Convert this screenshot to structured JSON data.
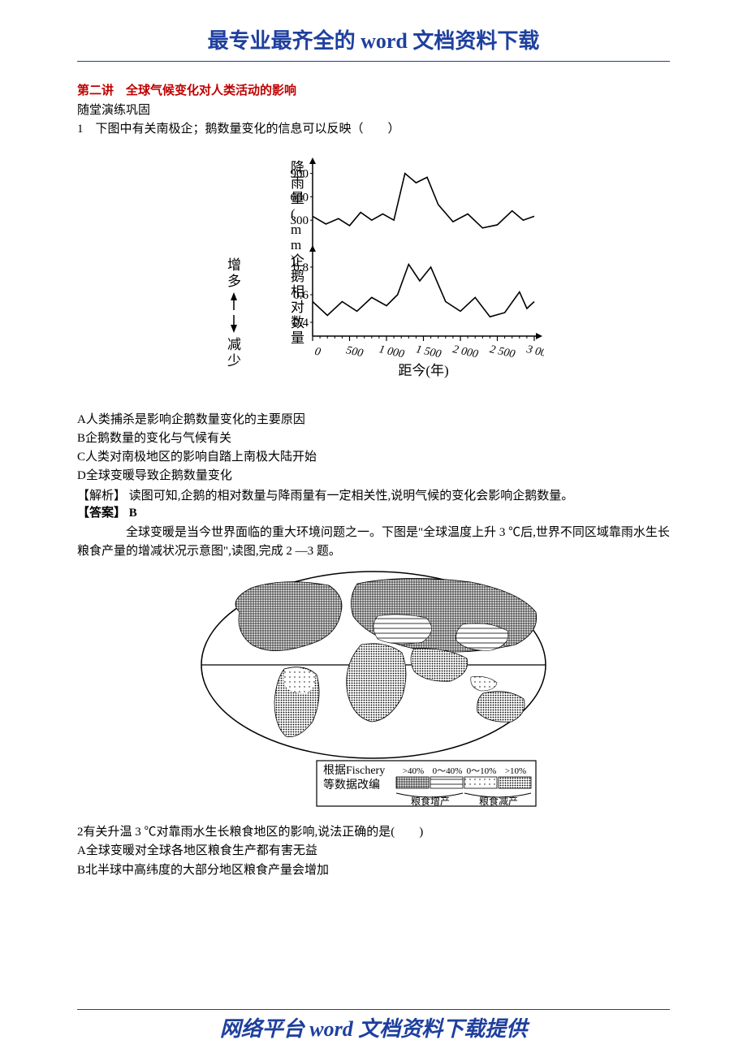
{
  "header": {
    "title": "最专业最齐全的 word 文档资料下载"
  },
  "footer": {
    "title": "网络平台 word 文档资料下载提供"
  },
  "section_title": "第二讲　全球气候变化对人类活动的影响",
  "subtitle": "随堂演练巩固",
  "q1": {
    "stem": "1　下图中有关南极企；鹅数量变化的信息可以反映（　　）",
    "optA": "A人类捕杀是影响企鹅数量变化的主要原因",
    "optB": "B企鹅数量的变化与气候有关",
    "optC": "C人类对南极地区的影响自踏上南极大陆开始",
    "optD": "D全球变暖导致企鹅数量变化",
    "analysis_label": "【解析】",
    "analysis": "读图可知,企鹅的相对数量与降雨量有一定相关性,说明气候的变化会影响企鹅数量。",
    "answer_label": "【答案】",
    "answer": "B"
  },
  "chart1": {
    "y1_label": "降雨量(mm)",
    "y1_ticks": [
      300,
      600,
      900
    ],
    "y2_label": "企鹅相对数量",
    "y2_ticks": [
      0.4,
      0.6,
      0.8
    ],
    "arrow_top": "增多",
    "arrow_bottom": "减少",
    "x_label": "距今(年)",
    "x_ticks": [
      0,
      500,
      1000,
      1500,
      2000,
      2500,
      3000
    ],
    "rain_series": [
      [
        0,
        350
      ],
      [
        180,
        250
      ],
      [
        350,
        320
      ],
      [
        500,
        230
      ],
      [
        650,
        400
      ],
      [
        800,
        300
      ],
      [
        950,
        380
      ],
      [
        1100,
        300
      ],
      [
        1250,
        900
      ],
      [
        1400,
        780
      ],
      [
        1550,
        850
      ],
      [
        1700,
        500
      ],
      [
        1900,
        280
      ],
      [
        2100,
        380
      ],
      [
        2300,
        200
      ],
      [
        2500,
        240
      ],
      [
        2700,
        420
      ],
      [
        2850,
        300
      ],
      [
        3000,
        350
      ]
    ],
    "penguin_series": [
      [
        0,
        0.55
      ],
      [
        200,
        0.45
      ],
      [
        400,
        0.55
      ],
      [
        600,
        0.48
      ],
      [
        800,
        0.58
      ],
      [
        1000,
        0.52
      ],
      [
        1150,
        0.6
      ],
      [
        1300,
        0.82
      ],
      [
        1450,
        0.7
      ],
      [
        1600,
        0.8
      ],
      [
        1800,
        0.55
      ],
      [
        2000,
        0.48
      ],
      [
        2200,
        0.58
      ],
      [
        2400,
        0.44
      ],
      [
        2600,
        0.47
      ],
      [
        2800,
        0.62
      ],
      [
        2900,
        0.5
      ],
      [
        3000,
        0.55
      ]
    ],
    "stroke_color": "#000000",
    "background": "#ffffff",
    "font_size_label": 17,
    "font_size_tick": 15
  },
  "intro2": "　　全球变暖是当今世界面临的重大环境问题之一。下图是\"全球温度上升 3 ℃后,世界不同区域靠雨水生长粮食产量的增减状况示意图\",读图,完成 2 —3 题。",
  "map": {
    "legend_source": "根据Fischery",
    "legend_sub": "等数据改编",
    "bins": [
      ">40%",
      "0～40%",
      "0～10%",
      ">10%"
    ],
    "left_label": "粮食增产",
    "right_label": "粮食减产",
    "colors": {
      "outline": "#000000",
      "bg": "#ffffff"
    }
  },
  "q2": {
    "stem": "2有关升温 3 ℃对靠雨水生长粮食地区的影响,说法正确的是(　　)",
    "optA": "A全球变暖对全球各地区粮食生产都有害无益",
    "optB": "B北半球中高纬度的大部分地区粮食产量会增加"
  }
}
